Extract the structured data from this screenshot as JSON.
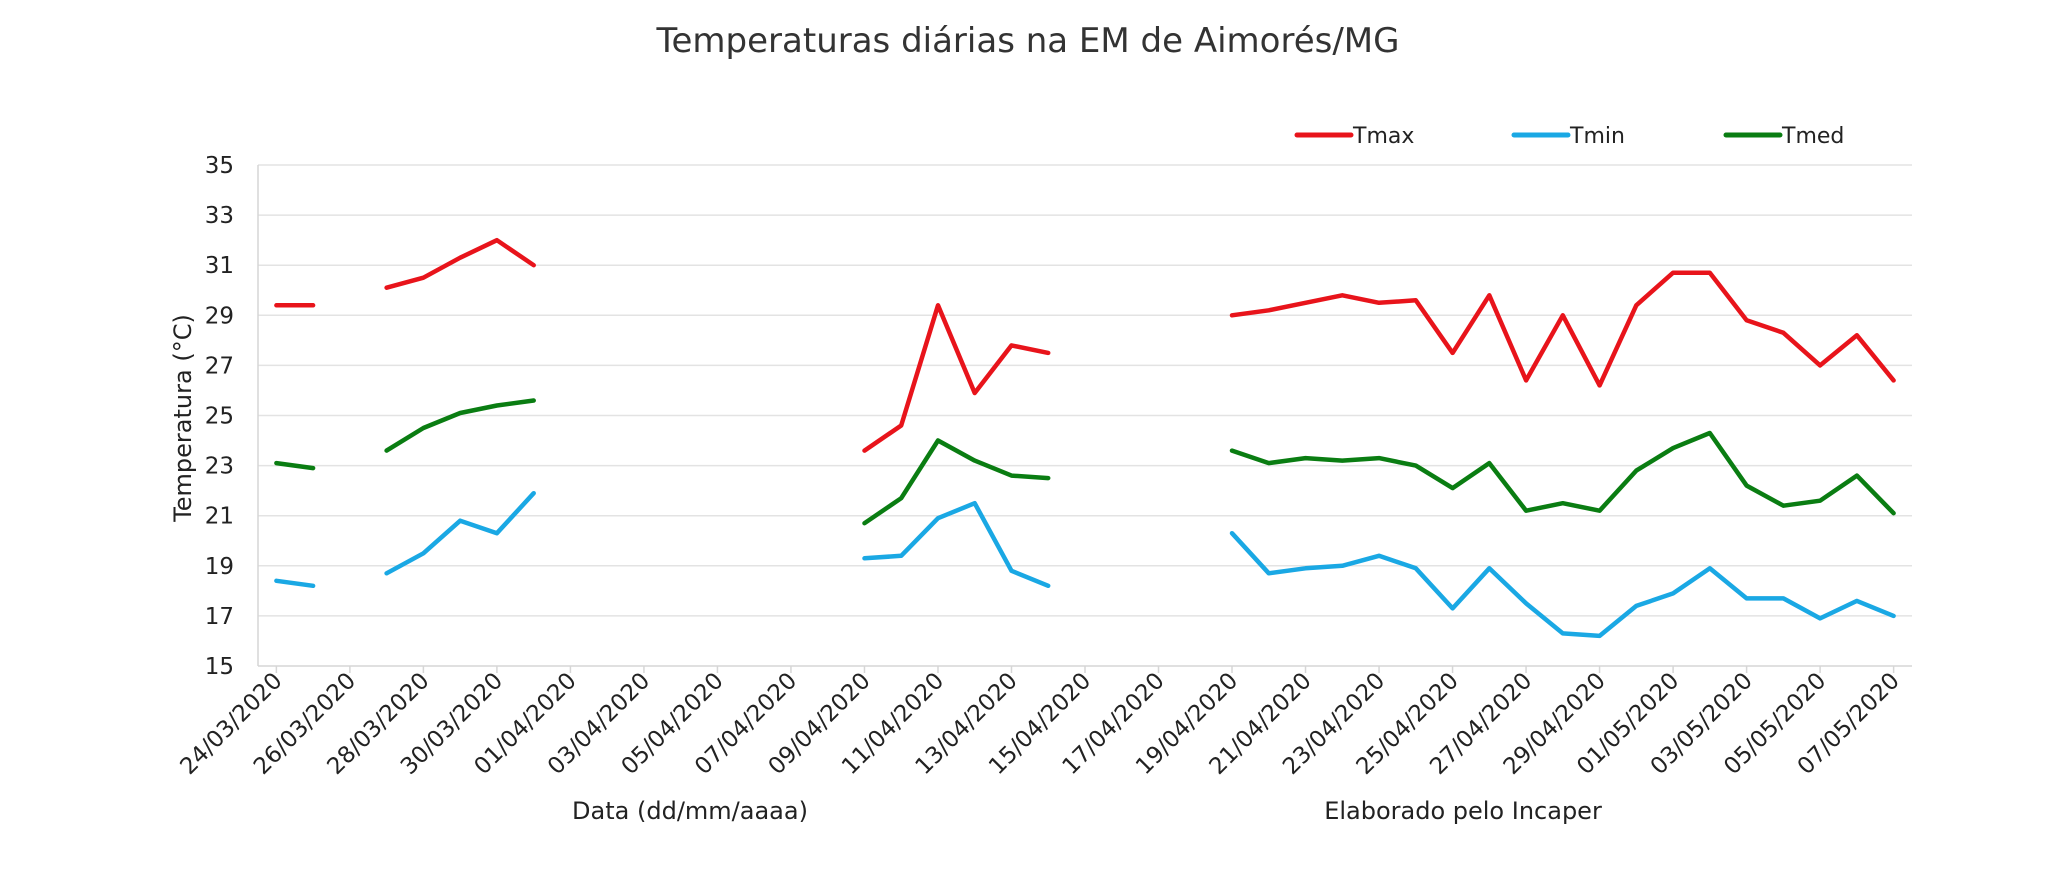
{
  "chart_data": {
    "type": "line",
    "title": "Temperaturas diárias na EM de Aimorés/MG",
    "xlabel": "Data (dd/mm/aaaa)",
    "ylabel": "Temperatura (°C)",
    "credit": "Elaborado pelo Incaper",
    "ylim": [
      15,
      35
    ],
    "yticks": [
      "15",
      "17",
      "19",
      "21",
      "23",
      "25",
      "27",
      "29",
      "31",
      "33",
      "35"
    ],
    "grid": true,
    "legend_position": "top-right",
    "x": [
      "24/03/2020",
      "25/03/2020",
      "26/03/2020",
      "27/03/2020",
      "28/03/2020",
      "29/03/2020",
      "30/03/2020",
      "31/03/2020",
      "01/04/2020",
      "02/04/2020",
      "03/04/2020",
      "04/04/2020",
      "05/04/2020",
      "06/04/2020",
      "07/04/2020",
      "08/04/2020",
      "09/04/2020",
      "10/04/2020",
      "11/04/2020",
      "12/04/2020",
      "13/04/2020",
      "14/04/2020",
      "15/04/2020",
      "16/04/2020",
      "17/04/2020",
      "18/04/2020",
      "19/04/2020",
      "20/04/2020",
      "21/04/2020",
      "22/04/2020",
      "23/04/2020",
      "24/04/2020",
      "25/04/2020",
      "26/04/2020",
      "27/04/2020",
      "28/04/2020",
      "29/04/2020",
      "30/04/2020",
      "01/05/2020",
      "02/05/2020",
      "03/05/2020",
      "04/05/2020",
      "05/05/2020",
      "06/05/2020",
      "07/05/2020"
    ],
    "xtick_labels": [
      "24/03/2020",
      "26/03/2020",
      "28/03/2020",
      "30/03/2020",
      "01/04/2020",
      "03/04/2020",
      "05/04/2020",
      "07/04/2020",
      "09/04/2020",
      "11/04/2020",
      "13/04/2020",
      "15/04/2020",
      "17/04/2020",
      "19/04/2020",
      "21/04/2020",
      "23/04/2020",
      "25/04/2020",
      "27/04/2020",
      "29/04/2020",
      "01/05/2020",
      "03/05/2020",
      "05/05/2020",
      "07/05/2020"
    ],
    "series": [
      {
        "name": "Tmax",
        "color": "#e8141b",
        "values": [
          29.4,
          29.4,
          null,
          30.1,
          30.5,
          31.3,
          32.0,
          31.0,
          null,
          null,
          null,
          null,
          null,
          null,
          null,
          null,
          23.6,
          24.6,
          29.4,
          25.9,
          27.8,
          27.5,
          null,
          null,
          null,
          null,
          29.0,
          29.2,
          29.5,
          29.8,
          29.5,
          29.6,
          27.5,
          29.8,
          26.4,
          29.0,
          26.2,
          29.4,
          30.7,
          30.7,
          28.8,
          28.3,
          27.0,
          28.2,
          26.4
        ]
      },
      {
        "name": "Tmin",
        "color": "#1aa8e4",
        "values": [
          18.4,
          18.2,
          null,
          18.7,
          19.5,
          20.8,
          20.3,
          21.9,
          null,
          null,
          null,
          null,
          null,
          null,
          null,
          null,
          19.3,
          19.4,
          20.9,
          21.5,
          18.8,
          18.2,
          null,
          null,
          null,
          null,
          20.3,
          18.7,
          18.9,
          19.0,
          19.4,
          18.9,
          17.3,
          18.9,
          17.5,
          16.3,
          16.2,
          17.4,
          17.9,
          18.9,
          17.7,
          17.7,
          16.9,
          17.6,
          17.0
        ]
      },
      {
        "name": "Tmed",
        "color": "#0a7d12",
        "values": [
          23.1,
          22.9,
          null,
          23.6,
          24.5,
          25.1,
          25.4,
          25.6,
          null,
          null,
          null,
          null,
          null,
          null,
          null,
          null,
          20.7,
          21.7,
          24.0,
          23.2,
          22.6,
          22.5,
          null,
          null,
          null,
          null,
          23.6,
          23.1,
          23.3,
          23.2,
          23.3,
          23.0,
          22.1,
          23.1,
          21.2,
          21.5,
          21.2,
          22.8,
          23.7,
          24.3,
          22.2,
          21.4,
          21.6,
          22.6,
          21.1
        ]
      }
    ]
  }
}
